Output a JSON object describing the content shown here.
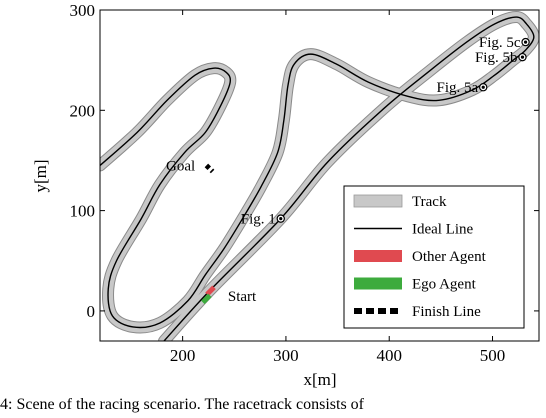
{
  "chart_data": {
    "type": "line",
    "xlabel": "x[m]",
    "ylabel": "y[m]",
    "xlim": [
      120,
      545
    ],
    "ylim": [
      -30,
      300
    ],
    "x_ticks": [
      {
        "value": 200,
        "label": "200"
      },
      {
        "value": 300,
        "label": "300"
      },
      {
        "value": 400,
        "label": "400"
      },
      {
        "value": 500,
        "label": "500"
      }
    ],
    "y_ticks": [
      {
        "value": 0,
        "label": "0"
      },
      {
        "value": 100,
        "label": "100"
      },
      {
        "value": 200,
        "label": "200"
      },
      {
        "value": 300,
        "label": "300"
      }
    ],
    "grid": false,
    "legend_position": "bottom-right",
    "series": [
      {
        "name": "Track",
        "kind": "band",
        "color": "#c8c8c8",
        "points": [
          [
            182,
            -30
          ],
          [
            226,
            20
          ],
          [
            295,
            92
          ],
          [
            340,
            148
          ],
          [
            395,
            202
          ],
          [
            440,
            240
          ],
          [
            475,
            268
          ],
          [
            502,
            286
          ],
          [
            523,
            293
          ],
          [
            533,
            286
          ],
          [
            540,
            273
          ],
          [
            532,
            260
          ],
          [
            520,
            250
          ],
          [
            502,
            235
          ],
          [
            480,
            220
          ],
          [
            448,
            210
          ],
          [
            418,
            214
          ],
          [
            380,
            228
          ],
          [
            349,
            246
          ],
          [
            324,
            256
          ],
          [
            308,
            246
          ],
          [
            302,
            225
          ],
          [
            298,
            190
          ],
          [
            292,
            158
          ],
          [
            276,
            124
          ],
          [
            258,
            92
          ],
          [
            240,
            62
          ],
          [
            222,
            36
          ],
          [
            205,
            10
          ],
          [
            178,
            -12
          ],
          [
            152,
            -16
          ],
          [
            132,
            -5
          ],
          [
            128,
            22
          ],
          [
            136,
            50
          ],
          [
            160,
            92
          ],
          [
            178,
            126
          ],
          [
            202,
            158
          ],
          [
            222,
            178
          ],
          [
            237,
            205
          ],
          [
            246,
            228
          ],
          [
            242,
            238
          ],
          [
            230,
            242
          ],
          [
            212,
            235
          ],
          [
            185,
            210
          ],
          [
            156,
            178
          ],
          [
            120,
            145
          ]
        ]
      },
      {
        "name": "Ideal Line",
        "kind": "line",
        "color": "#000000",
        "points": [
          [
            182,
            -30
          ],
          [
            226,
            20
          ],
          [
            295,
            92
          ],
          [
            340,
            148
          ],
          [
            395,
            202
          ],
          [
            440,
            240
          ],
          [
            475,
            268
          ],
          [
            502,
            286
          ],
          [
            523,
            293
          ],
          [
            533,
            286
          ],
          [
            540,
            273
          ],
          [
            532,
            260
          ],
          [
            520,
            250
          ],
          [
            502,
            235
          ],
          [
            480,
            220
          ],
          [
            448,
            210
          ],
          [
            418,
            214
          ],
          [
            380,
            228
          ],
          [
            349,
            246
          ],
          [
            324,
            256
          ],
          [
            308,
            246
          ],
          [
            302,
            225
          ],
          [
            298,
            190
          ],
          [
            292,
            158
          ],
          [
            276,
            124
          ],
          [
            258,
            92
          ],
          [
            240,
            62
          ],
          [
            222,
            36
          ],
          [
            205,
            10
          ],
          [
            178,
            -12
          ],
          [
            152,
            -16
          ],
          [
            132,
            -5
          ],
          [
            128,
            22
          ],
          [
            136,
            50
          ],
          [
            160,
            92
          ],
          [
            178,
            126
          ],
          [
            202,
            158
          ],
          [
            222,
            178
          ],
          [
            237,
            205
          ],
          [
            246,
            228
          ],
          [
            242,
            238
          ],
          [
            230,
            242
          ],
          [
            212,
            235
          ],
          [
            185,
            210
          ],
          [
            156,
            178
          ],
          [
            120,
            145
          ]
        ]
      },
      {
        "name": "Other Agent",
        "kind": "vehicle",
        "color": "#e04a50",
        "points": [
          [
            227,
            20
          ]
        ]
      },
      {
        "name": "Ego Agent",
        "kind": "vehicle",
        "color": "#3dab3d",
        "points": [
          [
            223,
            12
          ]
        ]
      },
      {
        "name": "Finish Line",
        "kind": "finish",
        "color": "#000000",
        "points": [
          [
            223,
            145
          ],
          [
            229,
            139
          ]
        ]
      }
    ],
    "markers": [
      {
        "label": "Fig. 1",
        "x": 295,
        "y": 92
      },
      {
        "label": "Fig. 5a",
        "x": 491,
        "y": 223
      },
      {
        "label": "Fig. 5b",
        "x": 529,
        "y": 253
      },
      {
        "label": "Fig. 5c",
        "x": 532,
        "y": 268
      }
    ],
    "annotations": [
      {
        "label": "Goal",
        "x": 218,
        "y": 145
      },
      {
        "label": "Start",
        "x": 238,
        "y": 15
      }
    ]
  },
  "caption": "4:  Scene  of  the  racing  scenario.  The  racetrack  consists  of"
}
